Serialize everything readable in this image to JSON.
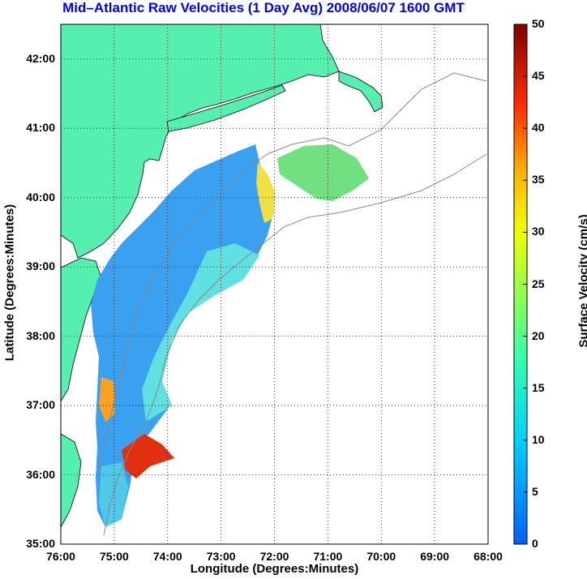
{
  "title": "Mid–Atlantic Raw Velocities (1 Day Avg) 2008/06/07 1600 GMT",
  "title_color": "#0000ff",
  "map": {
    "xlabel": "Longitude (Degrees:Minutes)",
    "ylabel": "Latitude (Degrees:Minutes)",
    "x_ticks": [
      "76:00",
      "75:00",
      "74:00",
      "73:00",
      "72:00",
      "71:00",
      "70:00",
      "69:00",
      "68:00"
    ],
    "y_ticks": [
      "42:00",
      "41:00",
      "40:00",
      "39:00",
      "38:00",
      "37:00",
      "36:00",
      "35:00"
    ],
    "lon_range": [
      -76,
      -68
    ],
    "lat_range": [
      35,
      42.5
    ],
    "land_color": "#55f0b0"
  },
  "colorbar": {
    "label": "Surface Velocity (cm/s)",
    "ticks": [
      "50",
      "45",
      "40",
      "35",
      "30",
      "25",
      "20",
      "15",
      "10",
      "5",
      "0"
    ],
    "range": [
      0,
      50
    ],
    "colormap": "jet"
  }
}
